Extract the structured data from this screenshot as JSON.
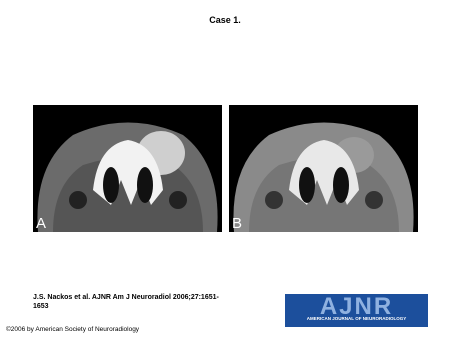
{
  "title": "Case 1.",
  "figure": {
    "panels": [
      {
        "label": "A"
      },
      {
        "label": "B"
      }
    ]
  },
  "citation": "J.S. Nackos et al. AJNR Am J Neuroradiol 2006;27:1651-1653",
  "logo": {
    "title": "AJNR",
    "subtitle": "AMERICAN JOURNAL OF NEURORADIOLOGY"
  },
  "copyright": "©2006 by American Society of Neuroradiology"
}
